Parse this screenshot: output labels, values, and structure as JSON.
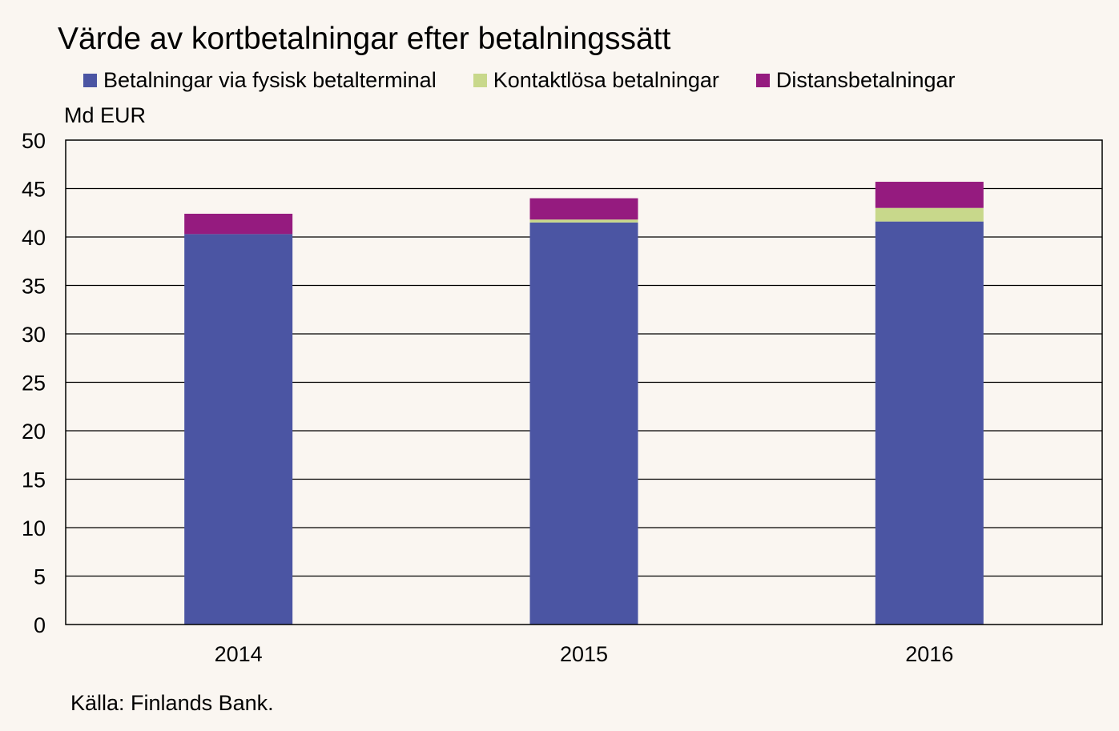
{
  "title": "Värde av kortbetalningar efter betalningssätt",
  "unit_label": "Md EUR",
  "source": "Källa: Finlands Bank.",
  "colors": {
    "background": "#faf6f1",
    "grid": "#000000"
  },
  "chart_data": {
    "type": "bar",
    "stacked": true,
    "title": "Värde av kortbetalningar efter betalningssätt",
    "ylabel": "Md EUR",
    "xlabel": "",
    "categories": [
      "2014",
      "2015",
      "2016"
    ],
    "ylim": [
      0,
      50
    ],
    "yticks": [
      0,
      5,
      10,
      15,
      20,
      25,
      30,
      35,
      40,
      45,
      50
    ],
    "grid": true,
    "legend": "top",
    "series": [
      {
        "name": "Betalningar via fysisk betalterminal",
        "color": "#4b55a3",
        "values": [
          40.3,
          41.5,
          41.6
        ]
      },
      {
        "name": "Kontaktlösa betalningar",
        "color": "#c8d88b",
        "values": [
          0.0,
          0.3,
          1.4
        ]
      },
      {
        "name": "Distansbetalningar",
        "color": "#951b7f",
        "values": [
          2.1,
          2.2,
          2.7
        ]
      }
    ]
  }
}
